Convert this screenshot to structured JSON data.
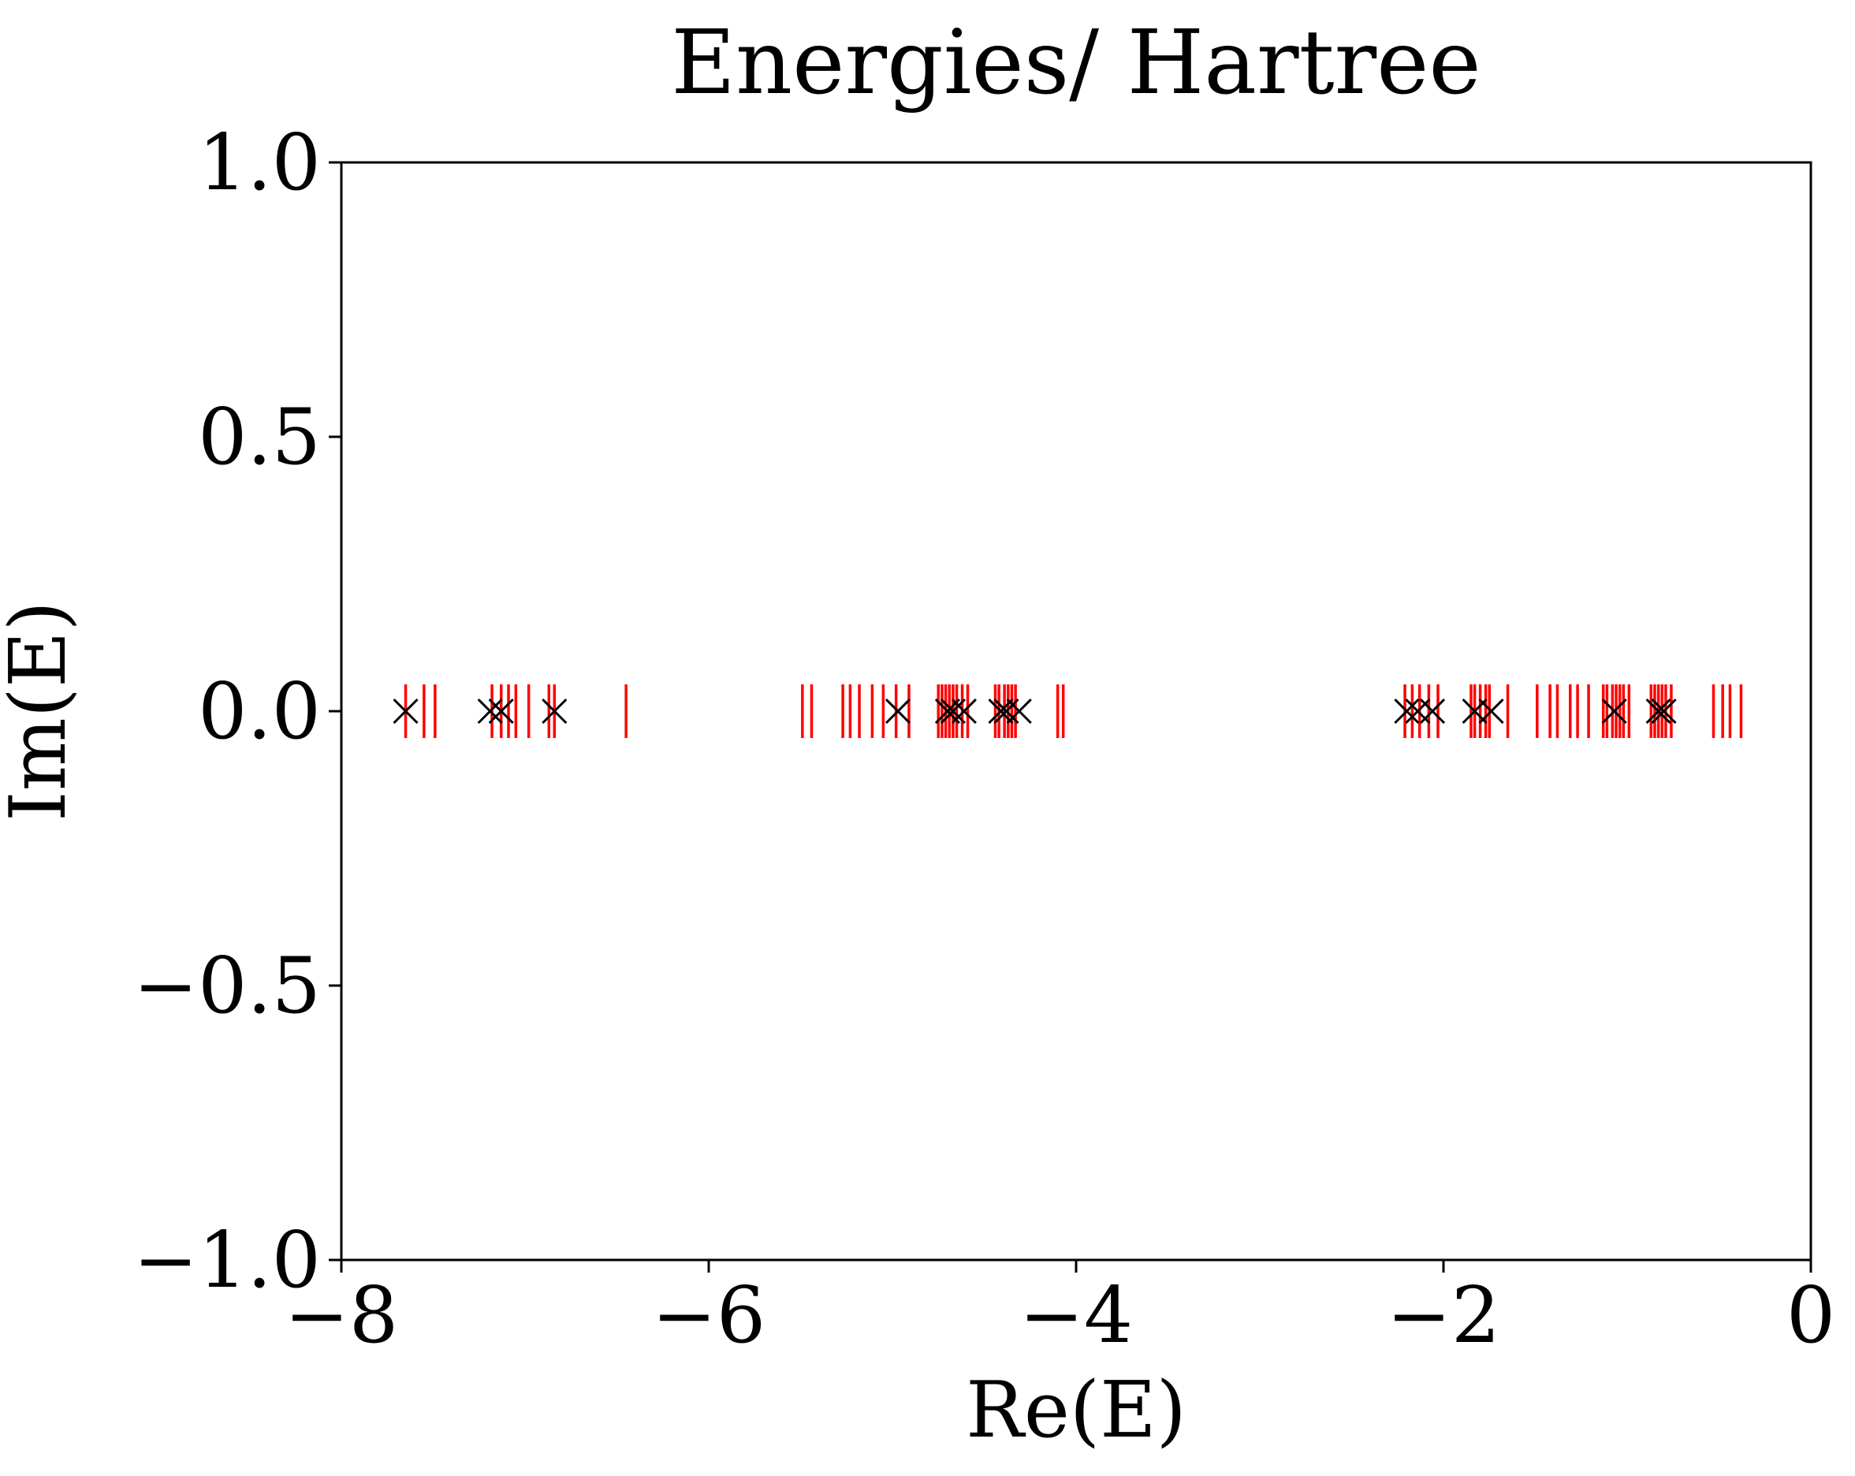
{
  "chart_data": {
    "type": "scatter",
    "title": "Energies/ Hartree",
    "xlabel": "Re(E)",
    "ylabel": "Im(E)",
    "xlim": [
      -8,
      0
    ],
    "ylim": [
      -1.0,
      1.0
    ],
    "x_ticks": [
      -8,
      -6,
      -4,
      -2,
      0
    ],
    "x_tick_labels": [
      "−8",
      "−6",
      "−4",
      "−2",
      "0"
    ],
    "y_ticks": [
      1.0,
      0.5,
      0.0,
      -0.5,
      -1.0
    ],
    "y_tick_labels": [
      "1.0",
      "0.5",
      "0.0",
      "−0.5",
      "−1.0"
    ],
    "grid": false,
    "legend": "none",
    "series": [
      {
        "marker": "|",
        "color": "#ff0000",
        "x": [
          -7.65,
          -7.55,
          -7.49,
          -7.18,
          -7.13,
          -7.09,
          -7.05,
          -6.98,
          -6.87,
          -6.84,
          -6.45,
          -5.49,
          -5.44,
          -5.27,
          -5.23,
          -5.18,
          -5.11,
          -5.05,
          -4.98,
          -4.91,
          -4.75,
          -4.73,
          -4.71,
          -4.69,
          -4.67,
          -4.65,
          -4.62,
          -4.59,
          -4.44,
          -4.42,
          -4.39,
          -4.37,
          -4.35,
          -4.33,
          -4.1,
          -4.07,
          -2.21,
          -2.17,
          -2.13,
          -2.08,
          -2.03,
          -1.85,
          -1.83,
          -1.8,
          -1.77,
          -1.75,
          -1.65,
          -1.49,
          -1.42,
          -1.38,
          -1.31,
          -1.27,
          -1.21,
          -1.13,
          -1.11,
          -1.08,
          -1.06,
          -1.04,
          -1.02,
          -0.99,
          -0.87,
          -0.85,
          -0.83,
          -0.81,
          -0.79,
          -0.76,
          -0.53,
          -0.48,
          -0.44,
          -0.38
        ],
        "y": [
          0,
          0,
          0,
          0,
          0,
          0,
          0,
          0,
          0,
          0,
          0,
          0,
          0,
          0,
          0,
          0,
          0,
          0,
          0,
          0,
          0,
          0,
          0,
          0,
          0,
          0,
          0,
          0,
          0,
          0,
          0,
          0,
          0,
          0,
          0,
          0,
          0,
          0,
          0,
          0,
          0,
          0,
          0,
          0,
          0,
          0,
          0,
          0,
          0,
          0,
          0,
          0,
          0,
          0,
          0,
          0,
          0,
          0,
          0,
          0,
          0,
          0,
          0,
          0,
          0,
          0,
          0,
          0,
          0,
          0
        ]
      },
      {
        "marker": "x",
        "color": "#000000",
        "x": [
          -7.65,
          -7.19,
          -7.13,
          -6.84,
          -4.97,
          -4.7,
          -4.67,
          -4.61,
          -4.41,
          -4.38,
          -4.31,
          -2.2,
          -2.14,
          -2.06,
          -1.83,
          -1.74,
          -1.07,
          -0.83,
          -0.8
        ],
        "y": [
          0,
          0,
          0,
          0,
          0,
          0,
          0,
          0,
          0,
          0,
          0,
          0,
          0,
          0,
          0,
          0,
          0,
          0,
          0
        ]
      }
    ]
  }
}
